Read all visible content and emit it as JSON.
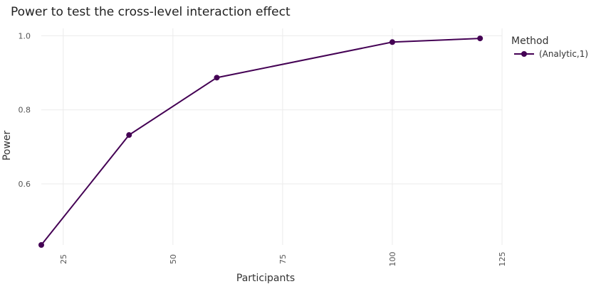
{
  "chart_data": {
    "type": "line",
    "title": "Power to test the cross-level interaction effect",
    "xlabel": "Participants",
    "ylabel": "Power",
    "xlim": [
      20,
      125
    ],
    "ylim": [
      0.435,
      1.02
    ],
    "x_ticks": [
      25,
      50,
      75,
      100,
      125
    ],
    "y_ticks": [
      0.6,
      0.8,
      1.0
    ],
    "y_tick_labels": [
      "0.6",
      "0.8",
      "1.0"
    ],
    "grid": true,
    "legend": {
      "title": "Method",
      "position": "right"
    },
    "series": [
      {
        "name": "(Analytic,1)",
        "color": "#440154",
        "x": [
          20,
          40,
          60,
          100,
          120
        ],
        "y": [
          0.435,
          0.732,
          0.887,
          0.983,
          0.993
        ]
      }
    ]
  }
}
